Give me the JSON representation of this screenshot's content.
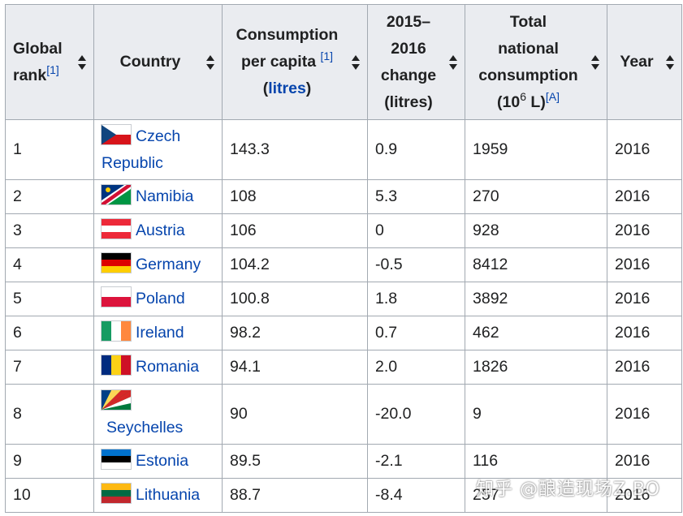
{
  "headers": {
    "rank_line1": "Global",
    "rank_line2": "rank",
    "rank_ref": "[1]",
    "country": "Country",
    "per_capita_line1": "Consumption",
    "per_capita_line2": "per capita",
    "per_capita_ref": "[1]",
    "per_capita_unit": "litres",
    "change_line1": "2015–",
    "change_line2": "2016",
    "change_line3": "change",
    "change_line4": "(litres)",
    "total_line1": "Total",
    "total_line2": "national",
    "total_line3": "consumption",
    "total_line4a": "(10",
    "total_line4sup": "6",
    "total_line4b": " L)",
    "total_ref": "[A]",
    "year": "Year"
  },
  "rows": [
    {
      "rank": "1",
      "country": "Czech Republic",
      "flag": "czech-republic-flag",
      "per_capita": "143.3",
      "change": "0.9",
      "total": "1959",
      "year": "2016"
    },
    {
      "rank": "2",
      "country": "Namibia",
      "flag": "namibia-flag",
      "per_capita": "108",
      "change": "5.3",
      "total": "270",
      "year": "2016"
    },
    {
      "rank": "3",
      "country": "Austria",
      "flag": "austria-flag",
      "per_capita": "106",
      "change": "0",
      "total": "928",
      "year": "2016"
    },
    {
      "rank": "4",
      "country": "Germany",
      "flag": "germany-flag",
      "per_capita": "104.2",
      "change": "-0.5",
      "total": "8412",
      "year": "2016"
    },
    {
      "rank": "5",
      "country": "Poland",
      "flag": "poland-flag",
      "per_capita": "100.8",
      "change": "1.8",
      "total": "3892",
      "year": "2016"
    },
    {
      "rank": "6",
      "country": "Ireland",
      "flag": "ireland-flag",
      "per_capita": "98.2",
      "change": "0.7",
      "total": "462",
      "year": "2016"
    },
    {
      "rank": "7",
      "country": "Romania",
      "flag": "romania-flag",
      "per_capita": "94.1",
      "change": "2.0",
      "total": "1826",
      "year": "2016"
    },
    {
      "rank": "8",
      "country": "Seychelles",
      "flag": "seychelles-flag",
      "per_capita": "90",
      "change": "-20.0",
      "total": "9",
      "year": "2016"
    },
    {
      "rank": "9",
      "country": "Estonia",
      "flag": "estonia-flag",
      "per_capita": "89.5",
      "change": "-2.1",
      "total": "116",
      "year": "2016"
    },
    {
      "rank": "10",
      "country": "Lithuania",
      "flag": "lithuania-flag",
      "per_capita": "88.7",
      "change": "-8.4",
      "total": "257",
      "year": "2016"
    }
  ],
  "watermark": "知乎 @酿造现场Z.BO",
  "colors": {
    "link": "#0645ad",
    "header_bg": "#eaecf0",
    "border": "#a2a9b1"
  }
}
